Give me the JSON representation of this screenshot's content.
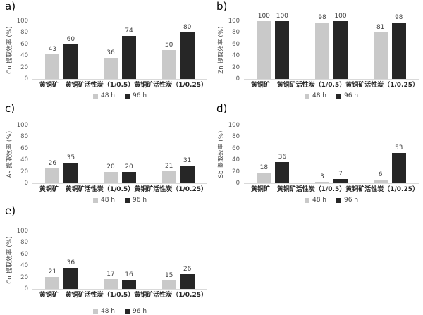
{
  "figure": {
    "background": "#ffffff",
    "colors": {
      "bar_48h": "#c9c9c9",
      "bar_96h": "#262626",
      "axis_line": "#d9d9d9",
      "tick_text": "#595959",
      "label_text": "#404040"
    }
  },
  "chart_data": [
    {
      "type": "bar",
      "panel": "a)",
      "ylabel": "Cu 提取效率 (%)",
      "xlabel": "",
      "categories": [
        "黄铜矿",
        "黄铜矿活性炭（1/0.5）",
        "黄铜矿活性炭（1/0.25）"
      ],
      "series": [
        {
          "name": "48 h",
          "color": "#c9c9c9",
          "values": [
            43,
            36,
            50
          ]
        },
        {
          "name": "96 h",
          "color": "#262626",
          "values": [
            60,
            74,
            80
          ]
        }
      ],
      "ylim": [
        0,
        100
      ],
      "yticks": [
        0,
        20,
        40,
        60,
        80,
        100
      ],
      "grid": false,
      "legend_position": "bottom"
    },
    {
      "type": "bar",
      "panel": "b)",
      "ylabel": "Zn 提取效率 (%)",
      "xlabel": "",
      "categories": [
        "黄铜矿",
        "黄铜矿活性炭（1/0.5）",
        "黄铜矿活性炭（1/0.25）"
      ],
      "series": [
        {
          "name": "48 h",
          "color": "#c9c9c9",
          "values": [
            100,
            98,
            81
          ]
        },
        {
          "name": "96 h",
          "color": "#262626",
          "values": [
            100,
            100,
            98
          ]
        }
      ],
      "ylim": [
        0,
        100
      ],
      "yticks": [
        0,
        20,
        40,
        60,
        80,
        100
      ],
      "grid": false,
      "legend_position": "bottom"
    },
    {
      "type": "bar",
      "panel": "c)",
      "ylabel": "As 提取效率 (%)",
      "xlabel": "",
      "categories": [
        "黄铜矿",
        "黄铜矿活性炭（1/0.5）",
        "黄铜矿活性炭（1/0.25）"
      ],
      "series": [
        {
          "name": "48 h",
          "color": "#c9c9c9",
          "values": [
            26,
            20,
            21
          ]
        },
        {
          "name": "96 h",
          "color": "#262626",
          "values": [
            35,
            20,
            31
          ]
        }
      ],
      "ylim": [
        0,
        100
      ],
      "yticks": [
        0,
        20,
        40,
        60,
        80,
        100
      ],
      "grid": false,
      "legend_position": "bottom"
    },
    {
      "type": "bar",
      "panel": "d)",
      "ylabel": "Sb 提取效率 (%)",
      "xlabel": "",
      "categories": [
        "黄铜矿",
        "黄铜矿活性炭（1/0.5）",
        "黄铜矿活性炭（1/0.25）"
      ],
      "series": [
        {
          "name": "48 h",
          "color": "#c9c9c9",
          "values": [
            18,
            3,
            6
          ]
        },
        {
          "name": "96 h",
          "color": "#262626",
          "values": [
            36,
            7,
            53
          ]
        }
      ],
      "ylim": [
        0,
        100
      ],
      "yticks": [
        0,
        20,
        40,
        60,
        80,
        100
      ],
      "grid": false,
      "legend_position": "bottom"
    },
    {
      "type": "bar",
      "panel": "e)",
      "ylabel": "Co 提取效率 (%)",
      "xlabel": "",
      "categories": [
        "黄铜矿",
        "黄铜矿活性炭（1/0.5）",
        "黄铜矿活性炭（1/0.25）"
      ],
      "series": [
        {
          "name": "48 h",
          "color": "#c9c9c9",
          "values": [
            21,
            17,
            15
          ]
        },
        {
          "name": "96 h",
          "color": "#262626",
          "values": [
            36,
            16,
            26
          ]
        }
      ],
      "ylim": [
        0,
        100
      ],
      "yticks": [
        0,
        20,
        40,
        60,
        80,
        100
      ],
      "grid": false,
      "legend_position": "bottom"
    }
  ]
}
